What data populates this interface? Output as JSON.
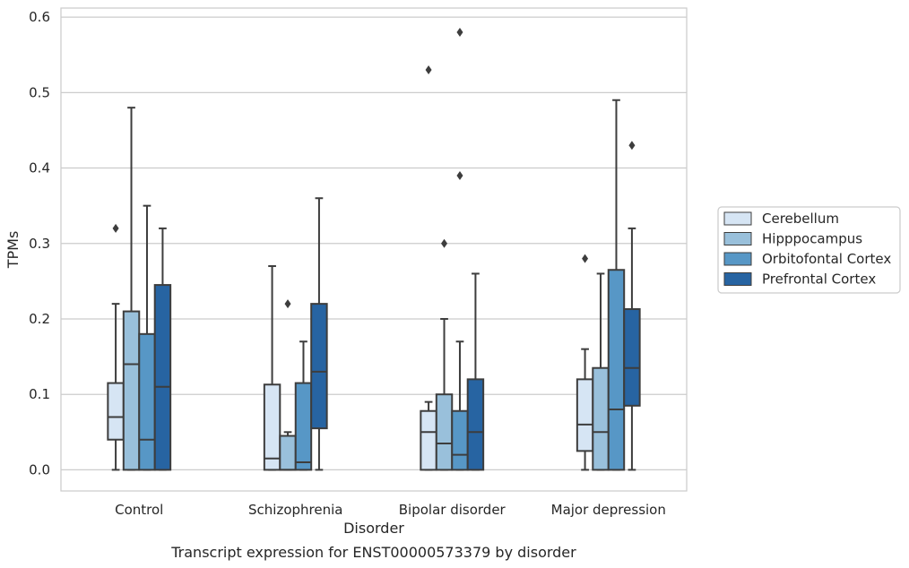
{
  "chart_data": {
    "type": "box",
    "title": "",
    "caption": "Transcript expression for ENST00000573379 by disorder",
    "xlabel": "Disorder",
    "ylabel": "TPMs",
    "ylim": [
      -0.028,
      0.612
    ],
    "yticks": [
      0.0,
      0.1,
      0.2,
      0.3,
      0.4,
      0.5,
      0.6
    ],
    "ytick_labels": [
      "0.0",
      "0.1",
      "0.2",
      "0.3",
      "0.4",
      "0.5",
      "0.6"
    ],
    "grid": "horizontal",
    "legend_position": "right",
    "categories": [
      "Control",
      "Schizophrenia",
      "Bipolar disorder",
      "Major depression"
    ],
    "series": [
      {
        "name": "Cerebellum",
        "color": "#d6e5f4",
        "boxes": [
          {
            "whislo": 0.0,
            "q1": 0.04,
            "med": 0.07,
            "q3": 0.115,
            "whishi": 0.22,
            "fliers": [
              0.32
            ]
          },
          {
            "whislo": 0.0,
            "q1": 0.0,
            "med": 0.015,
            "q3": 0.113,
            "whishi": 0.27,
            "fliers": []
          },
          {
            "whislo": 0.0,
            "q1": 0.0,
            "med": 0.05,
            "q3": 0.078,
            "whishi": 0.09,
            "fliers": [
              0.53
            ]
          },
          {
            "whislo": 0.0,
            "q1": 0.025,
            "med": 0.06,
            "q3": 0.12,
            "whishi": 0.16,
            "fliers": [
              0.28
            ]
          }
        ]
      },
      {
        "name": "Hipppocampus",
        "color": "#99c0db",
        "boxes": [
          {
            "whislo": 0.0,
            "q1": 0.0,
            "med": 0.14,
            "q3": 0.21,
            "whishi": 0.48,
            "fliers": []
          },
          {
            "whislo": 0.0,
            "q1": 0.0,
            "med": 0.0,
            "q3": 0.045,
            "whishi": 0.05,
            "fliers": [
              0.22
            ]
          },
          {
            "whislo": 0.0,
            "q1": 0.0,
            "med": 0.035,
            "q3": 0.1,
            "whishi": 0.2,
            "fliers": [
              0.3
            ]
          },
          {
            "whislo": 0.0,
            "q1": 0.0,
            "med": 0.05,
            "q3": 0.135,
            "whishi": 0.26,
            "fliers": []
          }
        ]
      },
      {
        "name": "Orbitofontal Cortex",
        "color": "#5797c6",
        "boxes": [
          {
            "whislo": 0.0,
            "q1": 0.0,
            "med": 0.04,
            "q3": 0.18,
            "whishi": 0.35,
            "fliers": []
          },
          {
            "whislo": 0.0,
            "q1": 0.0,
            "med": 0.01,
            "q3": 0.115,
            "whishi": 0.17,
            "fliers": []
          },
          {
            "whislo": 0.0,
            "q1": 0.0,
            "med": 0.02,
            "q3": 0.078,
            "whishi": 0.17,
            "fliers": [
              0.39,
              0.58
            ]
          },
          {
            "whislo": 0.0,
            "q1": 0.0,
            "med": 0.08,
            "q3": 0.265,
            "whishi": 0.49,
            "fliers": []
          }
        ]
      },
      {
        "name": "Prefrontal Cortex",
        "color": "#2764a2",
        "boxes": [
          {
            "whislo": 0.0,
            "q1": 0.0,
            "med": 0.11,
            "q3": 0.245,
            "whishi": 0.32,
            "fliers": []
          },
          {
            "whislo": 0.0,
            "q1": 0.055,
            "med": 0.13,
            "q3": 0.22,
            "whishi": 0.36,
            "fliers": []
          },
          {
            "whislo": 0.0,
            "q1": 0.0,
            "med": 0.05,
            "q3": 0.12,
            "whishi": 0.26,
            "fliers": []
          },
          {
            "whislo": 0.0,
            "q1": 0.085,
            "med": 0.135,
            "q3": 0.213,
            "whishi": 0.32,
            "fliers": [
              0.43
            ]
          }
        ]
      }
    ]
  }
}
